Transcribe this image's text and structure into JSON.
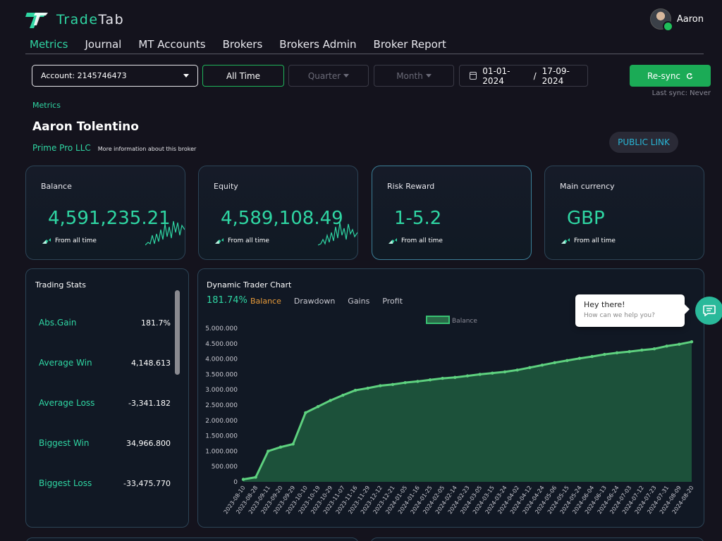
{
  "brand": {
    "name_prefix": "Trade",
    "name_suffix": "Tab"
  },
  "user": {
    "name": "Aaron"
  },
  "nav": {
    "items": [
      {
        "label": "Metrics",
        "active": true
      },
      {
        "label": "Journal",
        "active": false
      },
      {
        "label": "MT Accounts",
        "active": false
      },
      {
        "label": "Brokers",
        "active": false
      },
      {
        "label": "Brokers Admin",
        "active": false
      },
      {
        "label": "Broker Report",
        "active": false
      }
    ]
  },
  "filters": {
    "account": "Account: 2145746473",
    "all_time": "All Time",
    "quarter": "Quarter",
    "month": "Month",
    "date_from": "01-01-2024",
    "date_sep": "/",
    "date_to": "17-09-2024",
    "resync": "Re-sync",
    "last_sync": "Last sync: Never"
  },
  "page": {
    "crumb": "Metrics",
    "trader_name": "Aaron Tolentino",
    "broker": "Prime Pro LLC",
    "broker_more": "More information about this broker",
    "public_link": "PUBLIC LINK"
  },
  "cards": [
    {
      "label": "Balance",
      "value": "4,591,235.21",
      "sub": "From all time",
      "sparkline": true
    },
    {
      "label": "Equity",
      "value": "4,589,108.49",
      "sub": "From all time",
      "sparkline": true
    },
    {
      "label": "Risk Reward",
      "value": "1-5.2",
      "sub": "From all time",
      "sparkline": false
    },
    {
      "label": "Main currency",
      "value": "GBP",
      "sub": "From all time",
      "sparkline": false
    }
  ],
  "trading_stats": {
    "title": "Trading Stats",
    "rows": [
      {
        "label": "Abs.Gain",
        "value": "181.7%"
      },
      {
        "label": "Average Win",
        "value": "4,148.613"
      },
      {
        "label": "Average Loss",
        "value": "-3,341.182"
      },
      {
        "label": "Biggest Win",
        "value": "34,966.800"
      },
      {
        "label": "Biggest Loss",
        "value": "-33,475.770"
      }
    ]
  },
  "chart_panel": {
    "title": "Dynamic Trader Chart",
    "gain": "181.74%",
    "tabs": [
      {
        "label": "Balance",
        "active": true
      },
      {
        "label": "Drawdown",
        "active": false
      },
      {
        "label": "Gains",
        "active": false
      },
      {
        "label": "Profit",
        "active": false
      }
    ]
  },
  "chat": {
    "title": "Hey there!",
    "subtitle": "How can we help you?"
  },
  "colors": {
    "accent": "#2fd6a3",
    "green_button": "#1bab56",
    "highlight_tab": "#e79a39",
    "link": "#29b6d6"
  },
  "chart_data": {
    "type": "area",
    "legend": "Balance",
    "legend_position": "top-center",
    "grid": false,
    "ylim": [
      0,
      5000000
    ],
    "y_ticks": [
      "5.000.000",
      "4.500.000",
      "4.000.000",
      "3.500.000",
      "3.000.000",
      "2.500.000",
      "2.000.000",
      "1.500.000",
      "1.000.000",
      "500.000",
      "0"
    ],
    "x": [
      "2023-08-10",
      "2023-08-28",
      "2023-09-11",
      "2023-09-20",
      "2023-09-29",
      "2023-10-10",
      "2023-10-19",
      "2023-10-29",
      "2023-11-07",
      "2023-11-16",
      "2023-11-29",
      "2023-12-12",
      "2023-12-21",
      "2024-01-05",
      "2024-01-16",
      "2024-01-25",
      "2024-02-05",
      "2024-02-14",
      "2024-02-23",
      "2024-03-05",
      "2024-03-15",
      "2024-03-24",
      "2024-04-02",
      "2024-04-12",
      "2024-04-24",
      "2024-05-06",
      "2024-05-15",
      "2024-05-24",
      "2024-06-04",
      "2024-06-13",
      "2024-06-24",
      "2024-07-03",
      "2024-07-12",
      "2024-07-23",
      "2024-07-31",
      "2024-08-09",
      "2024-08-20"
    ],
    "series": [
      {
        "name": "Balance",
        "values": [
          80000,
          150000,
          1000000,
          1130000,
          1230000,
          2250000,
          2450000,
          2650000,
          2820000,
          2980000,
          3050000,
          3130000,
          3170000,
          3230000,
          3270000,
          3320000,
          3370000,
          3400000,
          3450000,
          3500000,
          3540000,
          3580000,
          3640000,
          3720000,
          3800000,
          3880000,
          3950000,
          4020000,
          4080000,
          4150000,
          4200000,
          4240000,
          4290000,
          4330000,
          4420000,
          4480000,
          4560000
        ]
      }
    ]
  }
}
